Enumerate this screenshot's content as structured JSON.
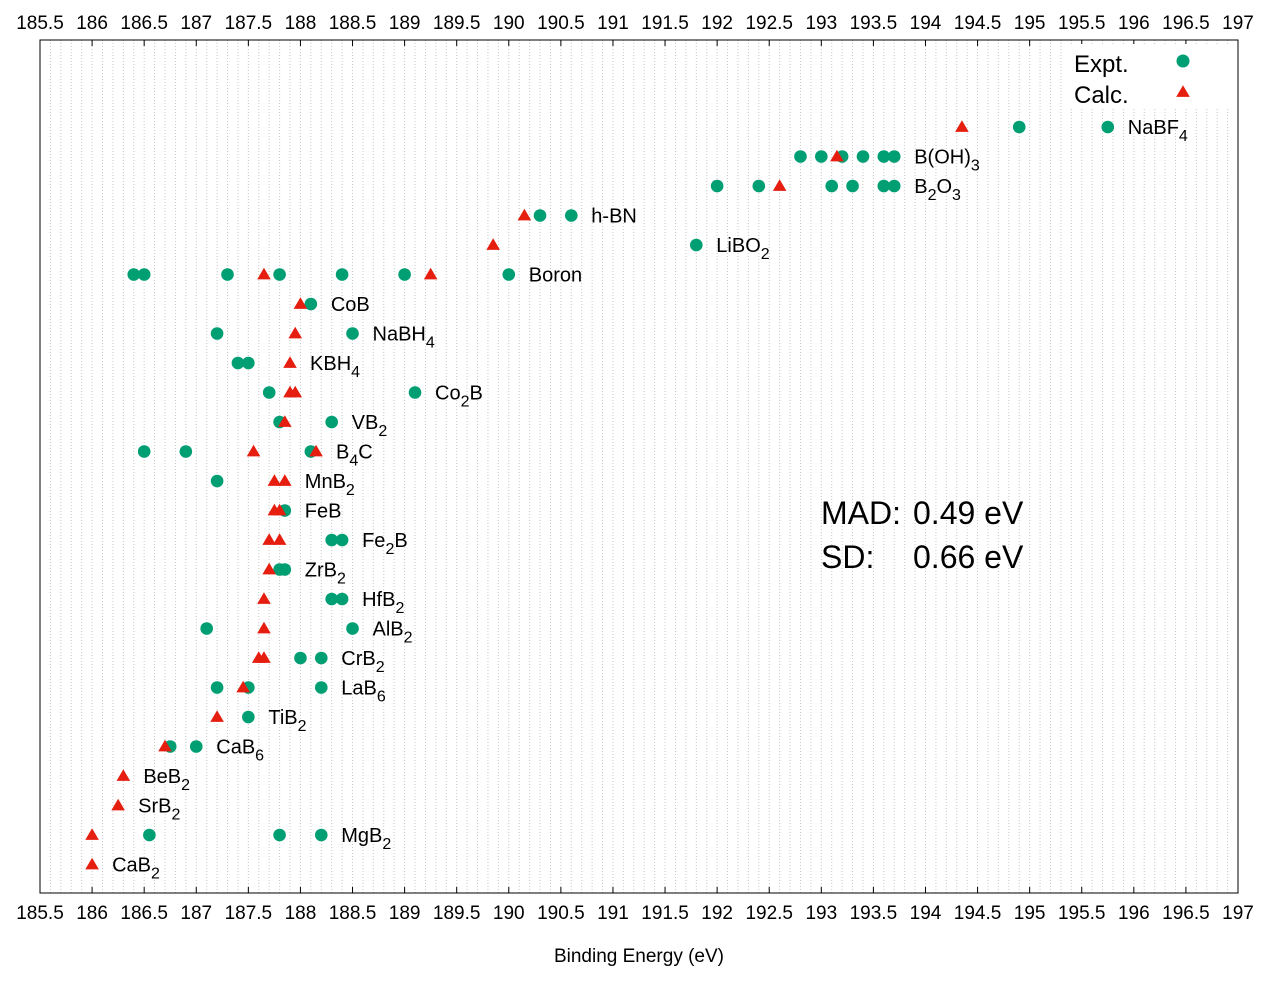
{
  "chart_data": {
    "type": "scatter",
    "xlabel": "Binding Energy (eV)",
    "xlim": [
      185.5,
      197
    ],
    "x_ticks": [
      "185.5",
      "186",
      "186.5",
      "187",
      "187.5",
      "188",
      "188.5",
      "189",
      "189.5",
      "190",
      "190.5",
      "191",
      "191.5",
      "192",
      "192.5",
      "193",
      "193.5",
      "194",
      "194.5",
      "195",
      "195.5",
      "196",
      "196.5",
      "197"
    ],
    "grid": "vertical dotted, minor every 0.1",
    "legend_placement": "top-right",
    "series": [
      {
        "name": "Expt.",
        "marker": "circle",
        "color": "#009e73"
      },
      {
        "name": "Calc.",
        "marker": "triangle",
        "color": "#e51e10"
      }
    ],
    "stats": {
      "mad_label": "MAD:",
      "mad_value": "0.49 eV",
      "sd_label": "SD:",
      "sd_value": "0.66 eV"
    },
    "compounds": [
      {
        "label": [
          "NaBF",
          "4",
          ""
        ],
        "expt": [
          194.9,
          195.75
        ],
        "calc": [
          194.35
        ]
      },
      {
        "label": [
          "B(OH)",
          "3",
          ""
        ],
        "expt": [
          192.8,
          193.0,
          193.2,
          193.4,
          193.6,
          193.7
        ],
        "calc": [
          193.15
        ]
      },
      {
        "label": [
          "B",
          "2",
          "O",
          "3",
          ""
        ],
        "expt": [
          192.0,
          192.4,
          193.1,
          193.3,
          193.6,
          193.7
        ],
        "calc": [
          192.6
        ]
      },
      {
        "label": [
          "h-BN"
        ],
        "expt": [
          190.3,
          190.6
        ],
        "calc": [
          190.15
        ]
      },
      {
        "label": [
          "LiBO",
          "2",
          ""
        ],
        "expt": [
          191.8
        ],
        "calc": [
          189.85
        ]
      },
      {
        "label": [
          "Boron"
        ],
        "expt": [
          186.4,
          186.5,
          187.3,
          187.8,
          188.4,
          189.0,
          190.0
        ],
        "calc": [
          187.65,
          189.25
        ]
      },
      {
        "label": [
          "CoB"
        ],
        "expt": [
          188.1
        ],
        "calc": [
          188.0
        ]
      },
      {
        "label": [
          "NaBH",
          "4",
          ""
        ],
        "expt": [
          187.2,
          188.5
        ],
        "calc": [
          187.95
        ]
      },
      {
        "label": [
          "KBH",
          "4",
          ""
        ],
        "expt": [
          187.4,
          187.5
        ],
        "calc": [
          187.9
        ]
      },
      {
        "label": [
          "Co",
          "2",
          "B"
        ],
        "expt": [
          187.7,
          189.1
        ],
        "calc": [
          187.9,
          187.95
        ]
      },
      {
        "label": [
          "VB",
          "2",
          ""
        ],
        "expt": [
          187.8,
          188.3
        ],
        "calc": [
          187.85
        ]
      },
      {
        "label": [
          "B",
          "4",
          "C"
        ],
        "expt": [
          186.5,
          186.9,
          188.1
        ],
        "calc": [
          187.55,
          188.15
        ]
      },
      {
        "label": [
          "MnB",
          "2",
          ""
        ],
        "expt": [
          187.2
        ],
        "calc": [
          187.75,
          187.85
        ]
      },
      {
        "label": [
          "FeB"
        ],
        "expt": [
          187.85
        ],
        "calc": [
          187.75,
          187.8
        ]
      },
      {
        "label": [
          "Fe",
          "2",
          "B"
        ],
        "expt": [
          188.3,
          188.4
        ],
        "calc": [
          187.7,
          187.8
        ]
      },
      {
        "label": [
          "ZrB",
          "2",
          ""
        ],
        "expt": [
          187.8,
          187.85
        ],
        "calc": [
          187.7
        ]
      },
      {
        "label": [
          "HfB",
          "2",
          ""
        ],
        "expt": [
          188.3,
          188.4
        ],
        "calc": [
          187.65
        ]
      },
      {
        "label": [
          "AlB",
          "2",
          ""
        ],
        "expt": [
          187.1,
          188.5
        ],
        "calc": [
          187.65
        ]
      },
      {
        "label": [
          "CrB",
          "2",
          ""
        ],
        "expt": [
          188.0,
          188.2
        ],
        "calc": [
          187.6,
          187.65
        ]
      },
      {
        "label": [
          "LaB",
          "6",
          ""
        ],
        "expt": [
          187.2,
          187.5,
          188.2
        ],
        "calc": [
          187.45
        ]
      },
      {
        "label": [
          "TiB",
          "2",
          ""
        ],
        "expt": [
          187.5
        ],
        "calc": [
          187.2
        ]
      },
      {
        "label": [
          "CaB",
          "6",
          ""
        ],
        "expt": [
          186.75,
          187.0
        ],
        "calc": [
          186.7
        ]
      },
      {
        "label": [
          "BeB",
          "2",
          ""
        ],
        "expt": [],
        "calc": [
          186.3
        ]
      },
      {
        "label": [
          "SrB",
          "2",
          ""
        ],
        "expt": [],
        "calc": [
          186.25
        ]
      },
      {
        "label": [
          "MgB",
          "2",
          ""
        ],
        "expt": [
          186.55,
          187.8,
          188.2
        ],
        "calc": [
          186.0
        ]
      },
      {
        "label": [
          "CaB",
          "2",
          ""
        ],
        "expt": [],
        "calc": [
          186.0
        ]
      }
    ]
  }
}
